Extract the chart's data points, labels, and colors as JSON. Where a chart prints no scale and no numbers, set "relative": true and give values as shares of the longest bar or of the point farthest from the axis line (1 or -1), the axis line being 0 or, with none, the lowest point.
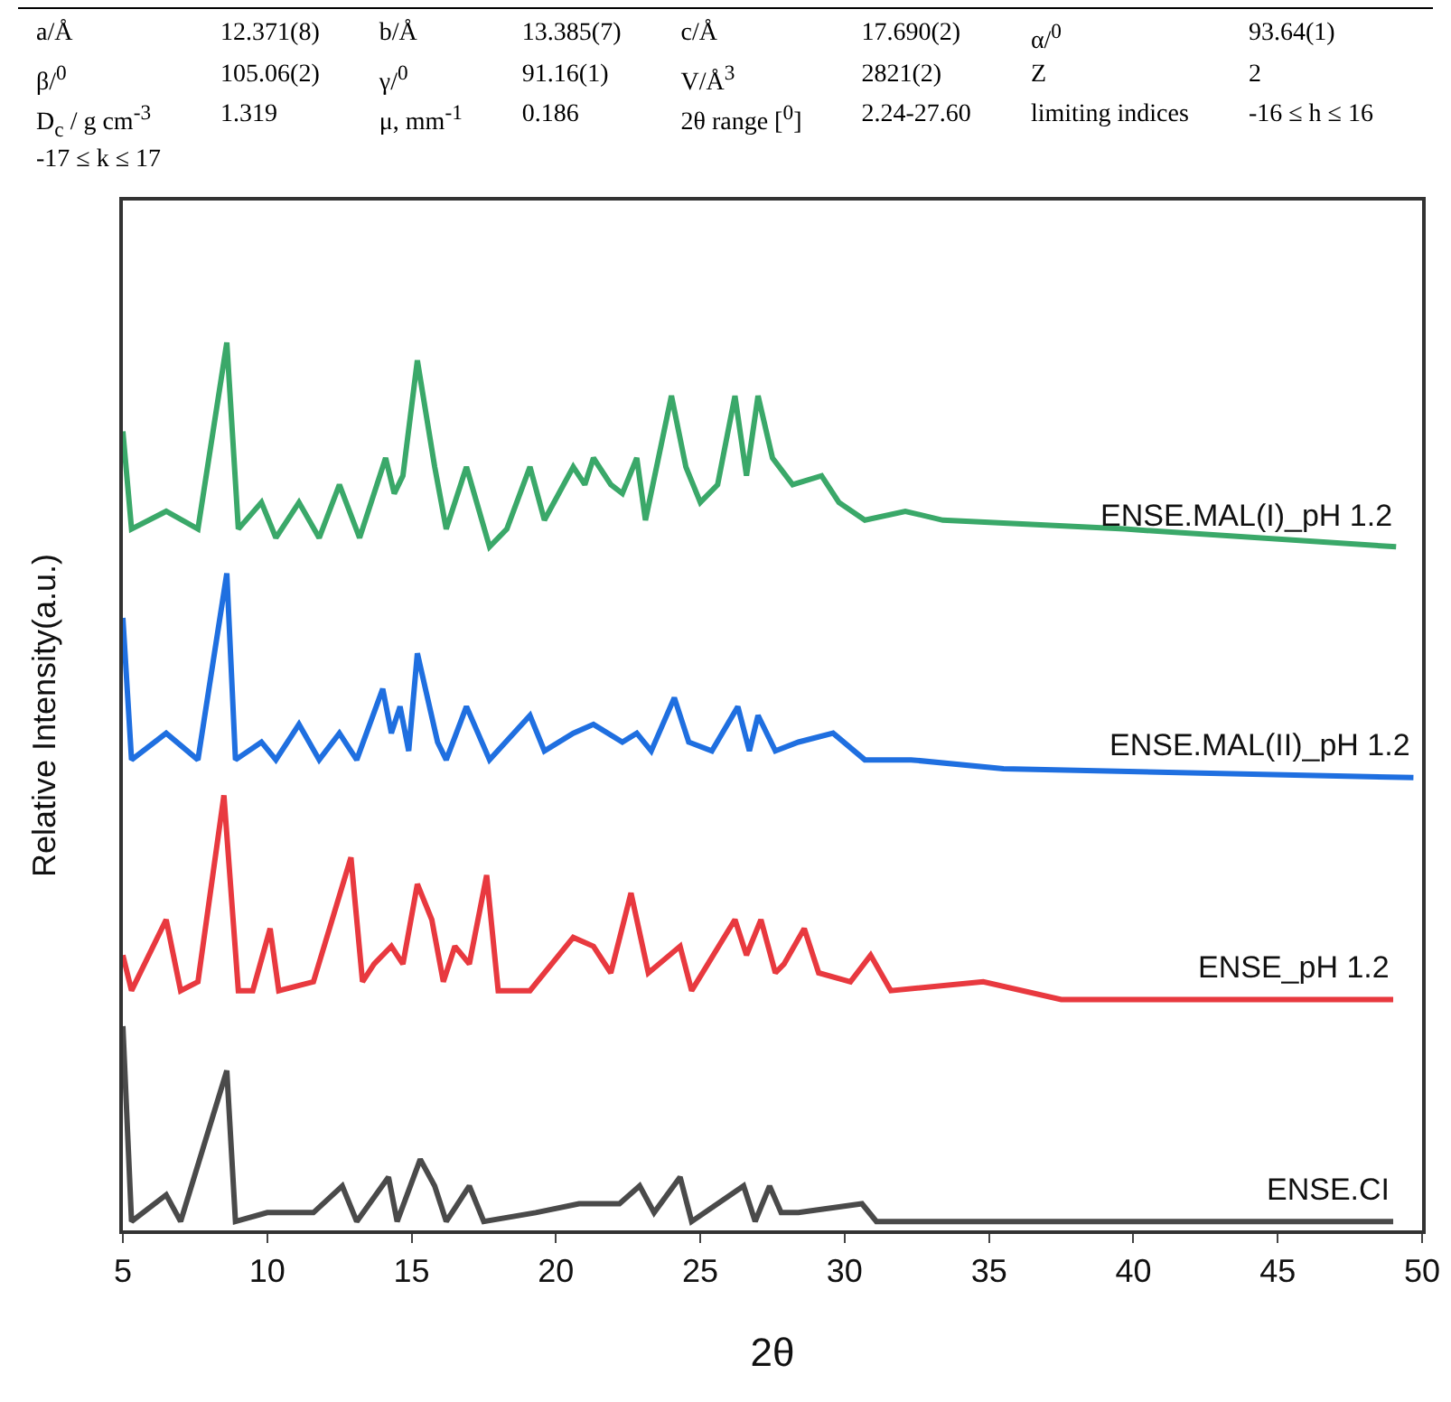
{
  "chart_data": {
    "type": "line",
    "relative": true,
    "xlabel": "2θ",
    "ylabel": "Relative Intensity(a.u.)",
    "xlim": [
      5,
      50
    ],
    "xticks": [
      5,
      10,
      15,
      20,
      25,
      30,
      35,
      40,
      45,
      50
    ],
    "grid": false,
    "legend": false,
    "marker": "none",
    "line_style": "solid",
    "annotations": [
      "a/Å",
      "12.371(8)",
      "b/Å",
      "13.385(7)",
      "c/Å",
      "17.690(2)",
      "α/$^{0}$",
      "93.64(1)",
      "β/$^{0}$",
      "105.06(2)",
      "γ/$^{0}$",
      "91.16(1)",
      "V/Å$^{3}$",
      "2821(2)",
      "Z",
      "2",
      "D$_{c}$ / g cm$^{-3}$",
      "1.319",
      "μ, mm$^{-1}$",
      "0.186",
      "2θ range [$^{0}$]",
      "2.24-27.60",
      "limiting indices",
      "-16 ≤ h ≤ 16",
      "-17 ≤ k ≤ 17"
    ],
    "series": [
      {
        "name": "ENSE.MAL(I)_pH 1.2",
        "color": "#3aa869",
        "x": [
          5.0,
          5.3,
          6.5,
          7.6,
          8.6,
          9.0,
          9.8,
          10.3,
          11.1,
          11.8,
          12.5,
          13.2,
          14.1,
          14.4,
          14.7,
          15.2,
          15.8,
          16.2,
          16.9,
          17.7,
          18.3,
          19.1,
          19.6,
          20.6,
          21.0,
          21.3,
          21.9,
          22.3,
          22.8,
          23.1,
          24.0,
          24.5,
          25.0,
          25.6,
          26.2,
          26.6,
          27.0,
          27.5,
          28.2,
          29.2,
          29.8,
          30.7,
          32.1,
          33.4,
          39.7,
          49.1
        ],
        "values": [
          0.9,
          0.79,
          0.81,
          0.79,
          1.0,
          0.79,
          0.82,
          0.78,
          0.82,
          0.78,
          0.84,
          0.78,
          0.87,
          0.83,
          0.85,
          0.98,
          0.86,
          0.79,
          0.86,
          0.77,
          0.79,
          0.86,
          0.8,
          0.86,
          0.84,
          0.87,
          0.84,
          0.83,
          0.87,
          0.8,
          0.94,
          0.86,
          0.82,
          0.84,
          0.94,
          0.85,
          0.94,
          0.87,
          0.84,
          0.85,
          0.82,
          0.8,
          0.81,
          0.8,
          0.79,
          0.77
        ]
      },
      {
        "name": "ENSE.MAL(II)_pH 1.2",
        "color": "#1f6fe0",
        "x": [
          5.0,
          5.3,
          6.5,
          7.6,
          8.6,
          8.9,
          9.8,
          10.3,
          11.1,
          11.8,
          12.5,
          13.1,
          14.0,
          14.3,
          14.6,
          14.9,
          15.2,
          15.9,
          16.2,
          16.9,
          17.7,
          19.1,
          19.6,
          20.6,
          21.3,
          22.3,
          22.8,
          23.3,
          24.1,
          24.6,
          25.4,
          26.3,
          26.7,
          27.0,
          27.6,
          28.4,
          29.6,
          30.7,
          32.3,
          35.5,
          49.7
        ],
        "values": [
          0.69,
          0.53,
          0.56,
          0.53,
          0.74,
          0.53,
          0.55,
          0.53,
          0.57,
          0.53,
          0.56,
          0.53,
          0.61,
          0.56,
          0.59,
          0.54,
          0.65,
          0.55,
          0.53,
          0.59,
          0.53,
          0.58,
          0.54,
          0.56,
          0.57,
          0.55,
          0.56,
          0.54,
          0.6,
          0.55,
          0.54,
          0.59,
          0.54,
          0.58,
          0.54,
          0.55,
          0.56,
          0.53,
          0.53,
          0.52,
          0.51
        ]
      },
      {
        "name": "ENSE_pH 1.2",
        "color": "#e8393f",
        "x": [
          5.0,
          5.3,
          6.5,
          7.0,
          7.6,
          8.5,
          9.0,
          9.5,
          10.1,
          10.4,
          11.6,
          12.9,
          13.3,
          13.7,
          14.3,
          14.7,
          15.2,
          15.7,
          16.1,
          16.5,
          17.0,
          17.6,
          18.0,
          19.1,
          20.6,
          21.3,
          21.9,
          22.6,
          23.2,
          24.3,
          24.7,
          26.2,
          26.6,
          27.1,
          27.6,
          27.9,
          28.6,
          29.1,
          30.2,
          30.9,
          31.6,
          34.8,
          37.5,
          49.0
        ],
        "values": [
          0.31,
          0.27,
          0.35,
          0.27,
          0.28,
          0.49,
          0.27,
          0.27,
          0.34,
          0.27,
          0.28,
          0.42,
          0.28,
          0.3,
          0.32,
          0.3,
          0.39,
          0.35,
          0.28,
          0.32,
          0.3,
          0.4,
          0.27,
          0.27,
          0.33,
          0.32,
          0.29,
          0.38,
          0.29,
          0.32,
          0.27,
          0.35,
          0.31,
          0.35,
          0.29,
          0.3,
          0.34,
          0.29,
          0.28,
          0.31,
          0.27,
          0.28,
          0.26,
          0.26
        ]
      },
      {
        "name": "ENSE.CI",
        "color": "#4a4a4a",
        "x": [
          5.0,
          5.3,
          6.5,
          7.0,
          8.6,
          8.9,
          10.0,
          11.6,
          12.6,
          13.1,
          14.2,
          14.5,
          15.3,
          15.8,
          16.2,
          17.0,
          17.5,
          19.3,
          20.8,
          22.2,
          22.9,
          23.4,
          24.3,
          24.7,
          26.5,
          26.9,
          27.4,
          27.8,
          28.4,
          30.6,
          31.1,
          35.5,
          49.0
        ],
        "values": [
          0.23,
          0.01,
          0.04,
          0.01,
          0.18,
          0.01,
          0.02,
          0.02,
          0.05,
          0.01,
          0.06,
          0.01,
          0.08,
          0.05,
          0.01,
          0.05,
          0.01,
          0.02,
          0.03,
          0.03,
          0.05,
          0.02,
          0.06,
          0.01,
          0.05,
          0.01,
          0.05,
          0.02,
          0.02,
          0.03,
          0.01,
          0.01,
          0.01
        ]
      }
    ]
  }
}
